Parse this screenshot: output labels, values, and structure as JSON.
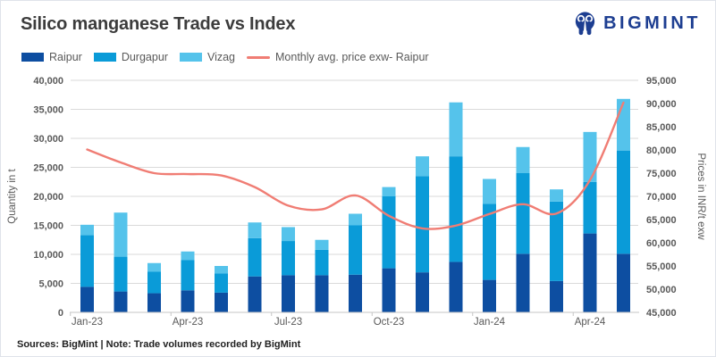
{
  "header": {
    "title": "Silico manganese Trade vs Index",
    "brand": "BIGMINT",
    "brand_color": "#1d3e91"
  },
  "legend": [
    {
      "label": "Raipur",
      "color": "#0d4ea1",
      "type": "swatch"
    },
    {
      "label": "Durgapur",
      "color": "#0a9bd8",
      "type": "swatch"
    },
    {
      "label": "Vizag",
      "color": "#55c3eb",
      "type": "swatch"
    },
    {
      "label": "Monthly avg. price exw- Raipur",
      "color": "#f07d74",
      "type": "line"
    }
  ],
  "chart_data": {
    "type": "bar+line",
    "categories": [
      "Jan-23",
      "Feb-23",
      "Mar-23",
      "Apr-23",
      "May-23",
      "Jun-23",
      "Jul-23",
      "Aug-23",
      "Sep-23",
      "Oct-23",
      "Nov-23",
      "Dec-23",
      "Jan-24",
      "Feb-24",
      "Mar-24",
      "Apr-24",
      "May-24"
    ],
    "x_tick_labels": [
      "Jan-23",
      "Apr-23",
      "Jul-23",
      "Oct-23",
      "Jan-24",
      "Apr-24"
    ],
    "x_tick_every": 3,
    "series": [
      {
        "name": "Raipur",
        "color": "#0d4ea1",
        "values": [
          4400,
          3600,
          3300,
          3800,
          3400,
          6200,
          6400,
          6400,
          6500,
          7600,
          6900,
          8700,
          5600,
          10100,
          5400,
          13600,
          10100
        ]
      },
      {
        "name": "Durgapur",
        "color": "#0a9bd8",
        "values": [
          8900,
          6000,
          3700,
          5200,
          3300,
          6600,
          5900,
          4400,
          8500,
          12400,
          16600,
          18200,
          13100,
          13900,
          13700,
          8900,
          17800
        ]
      },
      {
        "name": "Vizag",
        "color": "#55c3eb",
        "values": [
          1800,
          7600,
          1500,
          1500,
          1300,
          2700,
          2400,
          1700,
          2000,
          1600,
          3400,
          9300,
          4300,
          4500,
          2100,
          8600,
          8900
        ]
      }
    ],
    "line_series": {
      "name": "Monthly avg. price exw- Raipur",
      "color": "#f07d74",
      "axis": "right",
      "values": [
        80100,
        77300,
        75000,
        74800,
        74500,
        72000,
        68000,
        67200,
        70200,
        65800,
        63100,
        63700,
        66200,
        68300,
        66300,
        73500,
        90200
      ]
    },
    "left_axis": {
      "label": "Quantity in t",
      "min": 0,
      "max": 40000,
      "step": 5000
    },
    "right_axis": {
      "label": "Prices in INR/t exw",
      "min": 45000,
      "max": 95000,
      "step": 5000
    },
    "grid": true,
    "legend_position": "top"
  },
  "footer": {
    "text": "Sources: BigMint | Note: Trade volumes recorded by BigMint"
  }
}
